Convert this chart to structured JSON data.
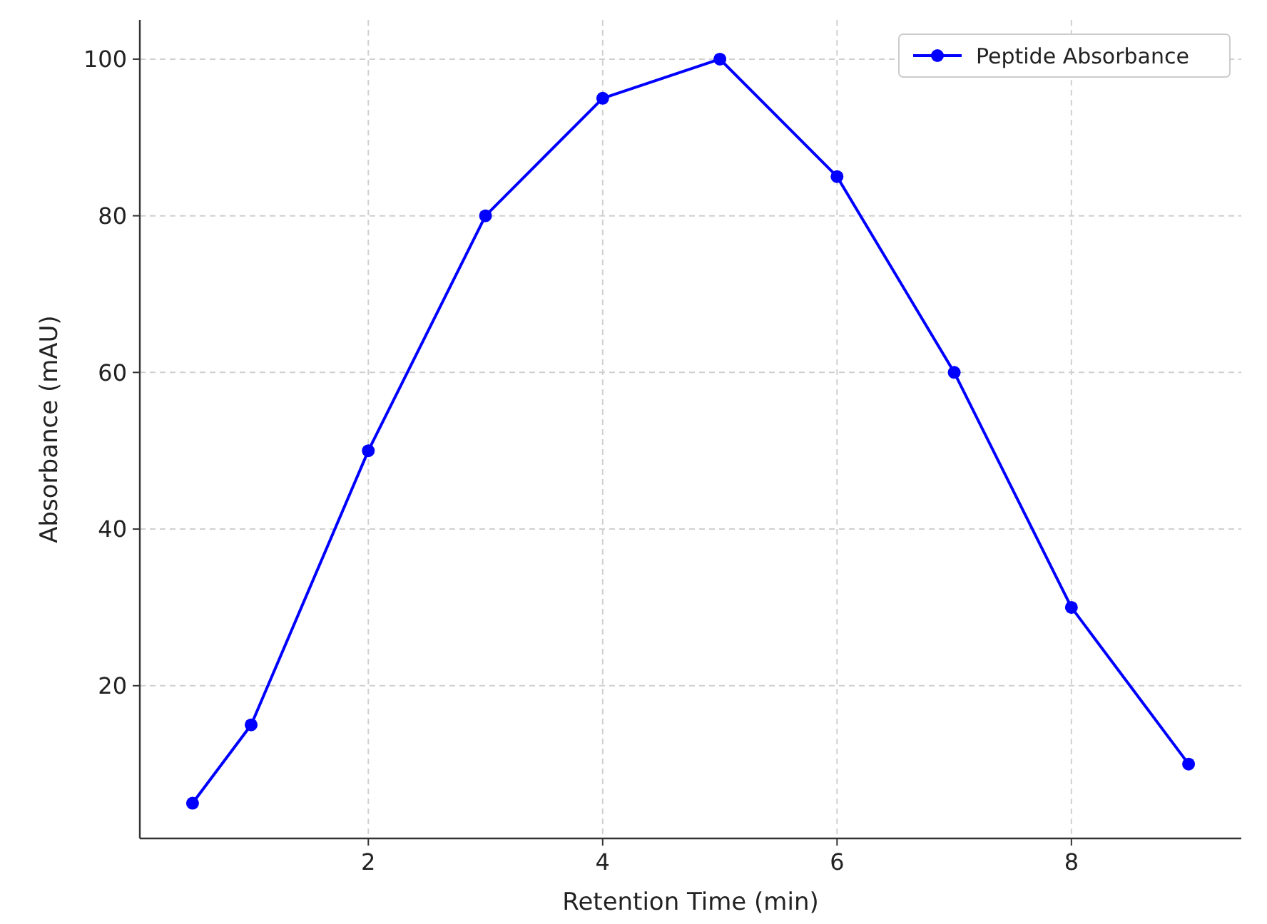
{
  "chart_data": {
    "type": "line",
    "xlabel": "Retention Time (min)",
    "ylabel": "Absorbance (mAU)",
    "x": [
      0.5,
      1,
      2,
      3,
      4,
      5,
      6,
      7,
      8,
      9
    ],
    "series": [
      {
        "name": "Peptide Absorbance",
        "color": "#0000ff",
        "values": [
          5,
          15,
          50,
          80,
          95,
          100,
          85,
          60,
          30,
          10
        ]
      }
    ],
    "xlim": [
      0.05,
      9.45
    ],
    "ylim": [
      0.5,
      105
    ],
    "xticks": [
      2,
      4,
      6,
      8
    ],
    "yticks": [
      20,
      40,
      60,
      80,
      100
    ],
    "grid": true,
    "legend": "top right",
    "marker": "circle",
    "line_style": "solid"
  }
}
